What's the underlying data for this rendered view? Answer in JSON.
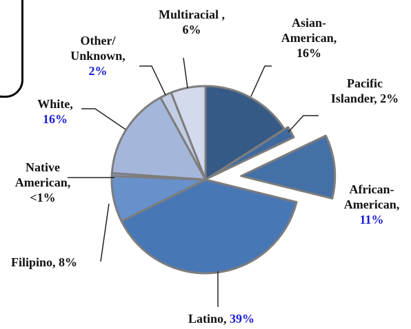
{
  "chart_data": {
    "type": "pie",
    "title": "",
    "slices": [
      {
        "label_lines": [
          "Asian-",
          "American,",
          "16%"
        ],
        "value": 16,
        "color": "#355a85",
        "explode": 0
      },
      {
        "label_lines": [
          "Pacific",
          "Islander, 2%"
        ],
        "value": 2,
        "color": "#3f6aa0",
        "explode": 6
      },
      {
        "label_lines": [
          "African-",
          "American,",
          "11%"
        ],
        "value": 11,
        "color": "#4470a8",
        "explode": 52
      },
      {
        "label_lines": [
          "Latino, 39%"
        ],
        "value": 39,
        "color": "#4877b6",
        "explode": 0
      },
      {
        "label_lines": [
          "Filipino,  8%"
        ],
        "value": 8,
        "color": "#6890cb",
        "explode": 0
      },
      {
        "label_lines": [
          "Native",
          "American,",
          "<1%"
        ],
        "value": 0.5,
        "color": "#87a4d2",
        "explode": 0
      },
      {
        "label_lines": [
          "White,",
          "16%"
        ],
        "value": 16,
        "color": "#a4b7da",
        "explode": 0
      },
      {
        "label_lines": [
          "Other/",
          "Unknown,",
          "2%"
        ],
        "value": 2,
        "color": "#c2cce4",
        "explode": 0
      },
      {
        "label_lines": [
          "Multiracial ,",
          "6%"
        ],
        "value": 6,
        "color": "#d3daec",
        "explode": 0
      }
    ]
  },
  "labels": {
    "asian": {
      "line1": "Asian-",
      "line2": "American,",
      "pct": "16%"
    },
    "pacific": {
      "line1": "Pacific",
      "line2": "Islander, 2%"
    },
    "african": {
      "line1": "African-",
      "line2": "American,",
      "pct": "11%"
    },
    "latino": {
      "text": "Latino, ",
      "pct": "39%"
    },
    "filipino": {
      "text": "Filipino,  8%"
    },
    "native": {
      "line1": "Native",
      "line2": "American,",
      "line3": "<1%"
    },
    "white": {
      "line1": "White,",
      "pct": "16%"
    },
    "other": {
      "line1": "Other/",
      "line2": "Unknown,",
      "pct": "2%"
    },
    "multiracial": {
      "line1": "Multiracial ,",
      "line2": "6%"
    }
  }
}
